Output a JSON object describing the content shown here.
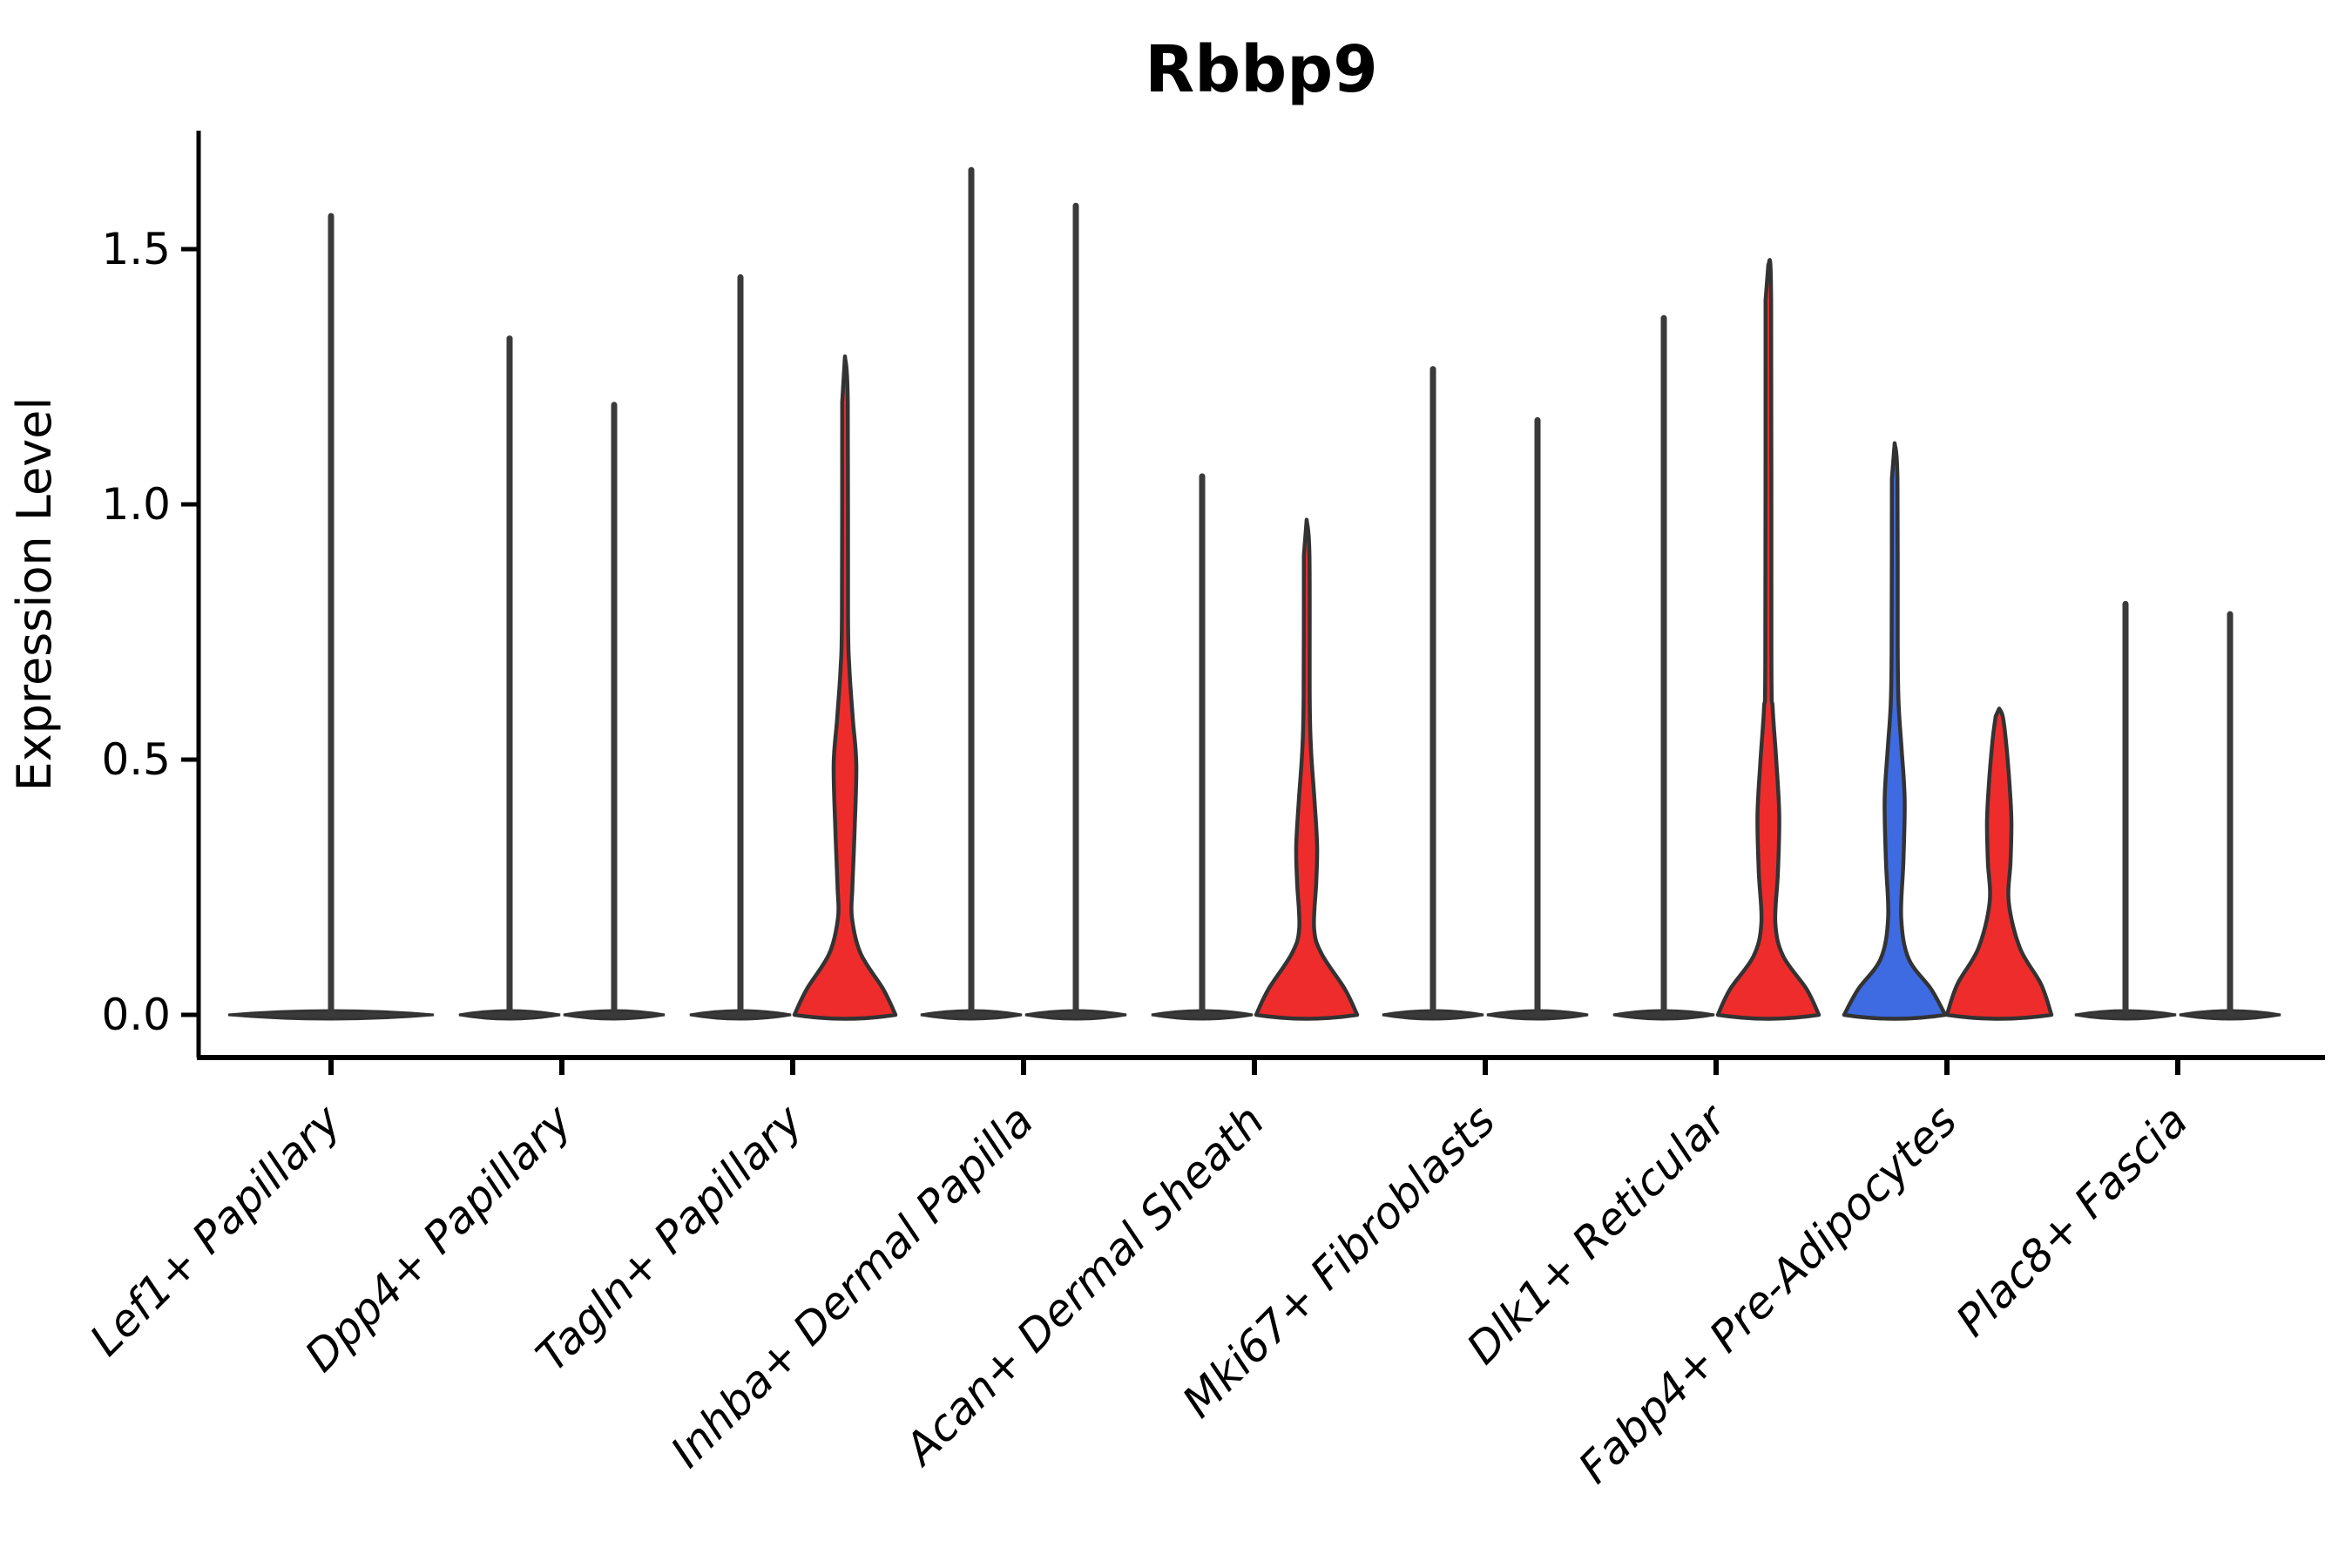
{
  "title": "Rbbp9",
  "chart_data": {
    "type": "violin",
    "title": "Rbbp9",
    "xlabel": "",
    "ylabel": "Expression Level",
    "ytick_labels": [
      "0.0",
      "0.5",
      "1.0",
      "1.5"
    ],
    "ytick_values": [
      0,
      0.5,
      1.0,
      1.5
    ],
    "ylim": [
      -0.09,
      1.73
    ],
    "grid": false,
    "legend_position": "none",
    "colors": {
      "red_fill": "#EE2C2C",
      "blue_fill": "#3E6BE1",
      "thin_violin_dark": "#3A3A3A",
      "outline": "#333333",
      "axis": "#000000"
    },
    "categories": [
      "Lef1+ Papillary",
      "Dpp4+ Papillary",
      "Tagln+ Papillary",
      "Inhba+ Dermal Papilla",
      "Acan+ Dermal Sheath",
      "Mki67+ Fibroblasts",
      "Dlk1+ Reticular",
      "Fabp4+ Pre-Adipocytes",
      "Plac8+ Fascia"
    ],
    "violins": [
      {
        "category": "Lef1+ Papillary",
        "items": [
          {
            "group": "single",
            "style": "spike",
            "fill": "thin_violin_dark",
            "max": 1.57
          }
        ]
      },
      {
        "category": "Dpp4+ Papillary",
        "items": [
          {
            "group": "left",
            "style": "spike",
            "fill": "thin_violin_dark",
            "max": 1.33
          },
          {
            "group": "right",
            "style": "spike",
            "fill": "thin_violin_dark",
            "max": 1.2
          }
        ]
      },
      {
        "category": "Tagln+ Papillary",
        "items": [
          {
            "group": "left",
            "style": "spike",
            "fill": "thin_violin_dark",
            "max": 1.45
          },
          {
            "group": "right",
            "style": "bulged",
            "fill": "red_fill",
            "max": 1.29,
            "profile": [
              [
                0,
                58
              ],
              [
                0.05,
                44
              ],
              [
                0.12,
                18
              ],
              [
                0.19,
                8
              ],
              [
                0.25,
                8.5
              ],
              [
                0.36,
                11
              ],
              [
                0.49,
                13
              ],
              [
                0.58,
                9
              ],
              [
                0.68,
                5
              ],
              [
                0.78,
                3.5
              ],
              [
                1.2,
                3.2
              ],
              [
                1.29,
                0
              ]
            ]
          }
        ]
      },
      {
        "category": "Inhba+ Dermal Papilla",
        "items": [
          {
            "group": "left",
            "style": "spike",
            "fill": "thin_violin_dark",
            "max": 1.66
          },
          {
            "group": "right",
            "style": "spike",
            "fill": "thin_violin_dark",
            "max": 1.59
          }
        ]
      },
      {
        "category": "Acan+ Dermal Sheath",
        "items": [
          {
            "group": "left",
            "style": "spike",
            "fill": "thin_violin_dark",
            "max": 1.06
          },
          {
            "group": "right",
            "style": "bulged",
            "fill": "red_fill",
            "max": 0.97,
            "profile": [
              [
                0,
                58
              ],
              [
                0.05,
                44
              ],
              [
                0.12,
                17
              ],
              [
                0.17,
                8.5
              ],
              [
                0.26,
                11
              ],
              [
                0.33,
                12
              ],
              [
                0.42,
                9
              ],
              [
                0.52,
                5
              ],
              [
                0.62,
                3.5
              ],
              [
                0.9,
                3.2
              ],
              [
                0.97,
                0
              ]
            ]
          }
        ]
      },
      {
        "category": "Mki67+ Fibroblasts",
        "items": [
          {
            "group": "left",
            "style": "spike",
            "fill": "thin_violin_dark",
            "max": 1.27
          },
          {
            "group": "right",
            "style": "spike",
            "fill": "thin_violin_dark",
            "max": 1.17
          }
        ]
      },
      {
        "category": "Dlk1+ Reticular",
        "items": [
          {
            "group": "left",
            "style": "spike",
            "fill": "thin_violin_dark",
            "max": 1.37
          },
          {
            "group": "right",
            "style": "bulged",
            "fill": "red_fill",
            "max": 1.47,
            "profile": [
              [
                0,
                58
              ],
              [
                0.05,
                44
              ],
              [
                0.115,
                17
              ],
              [
                0.18,
                8
              ],
              [
                0.28,
                11
              ],
              [
                0.39,
                12.5
              ],
              [
                0.5,
                9
              ],
              [
                0.6,
                5
              ],
              [
                0.7,
                3.5
              ],
              [
                1.4,
                3.2
              ],
              [
                1.47,
                0
              ]
            ]
          }
        ]
      },
      {
        "category": "Fabp4+ Pre-Adipocytes",
        "items": [
          {
            "group": "left",
            "style": "bulged",
            "fill": "blue_fill",
            "max": 1.12,
            "profile": [
              [
                0,
                58
              ],
              [
                0.05,
                42
              ],
              [
                0.11,
                16
              ],
              [
                0.19,
                7.5
              ],
              [
                0.3,
                10
              ],
              [
                0.42,
                11.5
              ],
              [
                0.52,
                8
              ],
              [
                0.61,
                4.5
              ],
              [
                0.72,
                3.5
              ],
              [
                1.05,
                3.2
              ],
              [
                1.12,
                0
              ]
            ]
          },
          {
            "group": "right",
            "style": "bulged",
            "fill": "red_fill",
            "max": 0.6,
            "profile": [
              [
                0,
                60
              ],
              [
                0.06,
                48
              ],
              [
                0.13,
                24
              ],
              [
                0.22,
                11
              ],
              [
                0.3,
                13
              ],
              [
                0.38,
                14
              ],
              [
                0.46,
                11.5
              ],
              [
                0.54,
                7.5
              ],
              [
                0.585,
                4
              ],
              [
                0.6,
                0
              ]
            ]
          }
        ]
      },
      {
        "category": "Plac8+ Fascia",
        "items": [
          {
            "group": "left",
            "style": "spike",
            "fill": "thin_violin_dark",
            "max": 0.81
          },
          {
            "group": "right",
            "style": "spike",
            "fill": "thin_violin_dark",
            "max": 0.79
          }
        ]
      }
    ]
  }
}
